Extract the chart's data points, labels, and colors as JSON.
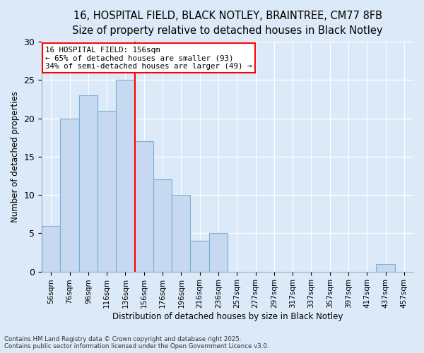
{
  "title1": "16, HOSPITAL FIELD, BLACK NOTLEY, BRAINTREE, CM77 8FB",
  "title2": "Size of property relative to detached houses in Black Notley",
  "xlabel": "Distribution of detached houses by size in Black Notley",
  "ylabel": "Number of detached properties",
  "bar_labels": [
    "56sqm",
    "76sqm",
    "96sqm",
    "116sqm",
    "136sqm",
    "156sqm",
    "176sqm",
    "196sqm",
    "216sqm",
    "236sqm",
    "257sqm",
    "277sqm",
    "297sqm",
    "317sqm",
    "337sqm",
    "357sqm",
    "397sqm",
    "417sqm",
    "437sqm",
    "457sqm"
  ],
  "bar_values": [
    6,
    20,
    23,
    21,
    25,
    17,
    12,
    10,
    4,
    5,
    0,
    0,
    0,
    0,
    0,
    0,
    0,
    0,
    1,
    0
  ],
  "bar_color": "#c6d9f0",
  "bar_edge_color": "#7bafd4",
  "vline_x_left": 4.5,
  "vline_color": "red",
  "annotation_title": "16 HOSPITAL FIELD: 156sqm",
  "annotation_line1": "← 65% of detached houses are smaller (93)",
  "annotation_line2": "34% of semi-detached houses are larger (49) →",
  "annotation_box_color": "white",
  "annotation_box_edge_color": "red",
  "footnote1": "Contains HM Land Registry data © Crown copyright and database right 2025.",
  "footnote2": "Contains public sector information licensed under the Open Government Licence v3.0.",
  "ylim": [
    0,
    30
  ],
  "yticks": [
    0,
    5,
    10,
    15,
    20,
    25,
    30
  ],
  "bg_color": "#dce9f8",
  "plot_bg_color": "#dce9f8",
  "title_fontsize": 10.5,
  "subtitle_fontsize": 9.5
}
